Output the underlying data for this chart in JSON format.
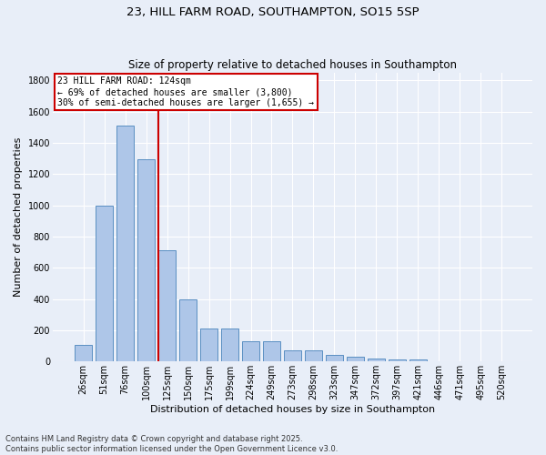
{
  "title_line1": "23, HILL FARM ROAD, SOUTHAMPTON, SO15 5SP",
  "title_line2": "Size of property relative to detached houses in Southampton",
  "xlabel": "Distribution of detached houses by size in Southampton",
  "ylabel": "Number of detached properties",
  "categories": [
    "26sqm",
    "51sqm",
    "76sqm",
    "100sqm",
    "125sqm",
    "150sqm",
    "175sqm",
    "199sqm",
    "224sqm",
    "249sqm",
    "273sqm",
    "298sqm",
    "323sqm",
    "347sqm",
    "372sqm",
    "397sqm",
    "421sqm",
    "446sqm",
    "471sqm",
    "495sqm",
    "520sqm"
  ],
  "values": [
    105,
    1000,
    1510,
    1295,
    710,
    400,
    210,
    210,
    130,
    130,
    70,
    70,
    40,
    30,
    20,
    15,
    15,
    0,
    0,
    0,
    0
  ],
  "bar_color": "#aec6e8",
  "bar_edge_color": "#5a8fc2",
  "background_color": "#e8eef8",
  "grid_color": "#ffffff",
  "vline_color": "#cc0000",
  "annotation_text": "23 HILL FARM ROAD: 124sqm\n← 69% of detached houses are smaller (3,800)\n30% of semi-detached houses are larger (1,655) →",
  "annotation_box_color": "#cc0000",
  "annotation_fill": "#ffffff",
  "footer_line1": "Contains HM Land Registry data © Crown copyright and database right 2025.",
  "footer_line2": "Contains public sector information licensed under the Open Government Licence v3.0.",
  "ylim": [
    0,
    1850
  ],
  "yticks": [
    0,
    200,
    400,
    600,
    800,
    1000,
    1200,
    1400,
    1600,
    1800
  ],
  "figsize": [
    6.0,
    5.0
  ],
  "dpi": 100,
  "title1_fontsize": 9.5,
  "title2_fontsize": 8.5,
  "xlabel_fontsize": 8,
  "ylabel_fontsize": 8,
  "tick_fontsize": 7,
  "annotation_fontsize": 7,
  "footer_fontsize": 6
}
